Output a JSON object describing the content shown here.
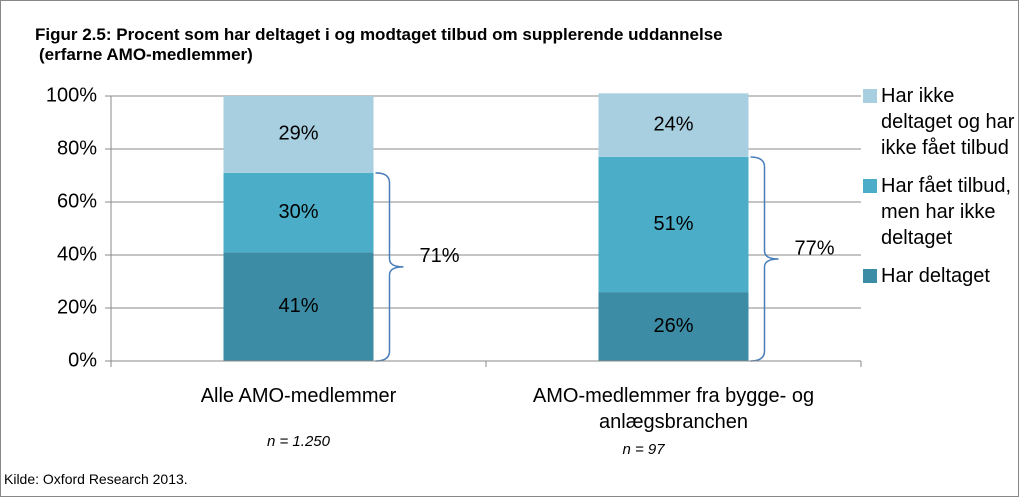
{
  "chart_data": {
    "type": "stacked_bar",
    "title": "Figur 2.5: Procent som har deltaget i og modtaget tilbud om supplerende  uddannelse",
    "subtitle": "(erfarne AMO-medlemmer)",
    "categories": [
      "Alle AMO-medlemmer",
      "AMO-medlemmer fra bygge- og anlægsbranchen"
    ],
    "category_notes": [
      "n = 1.250",
      "n = 97"
    ],
    "series": [
      {
        "name": "Har deltaget",
        "color": "#3c8ca5",
        "values": [
          41,
          26
        ],
        "value_labels": [
          "41%",
          "26%"
        ]
      },
      {
        "name": "Har fået tilbud, men har ikke deltaget",
        "color": "#4badc7",
        "values": [
          30,
          51
        ],
        "value_labels": [
          "30%",
          "51%"
        ]
      },
      {
        "name": "Har ikke deltaget og har ikke fået tilbud",
        "color": "#a8cfe0",
        "values": [
          29,
          24
        ],
        "value_labels": [
          "29%",
          "24%"
        ]
      }
    ],
    "annotations": [
      {
        "value": 71,
        "label": "71%"
      },
      {
        "value": 77,
        "label": "77%"
      }
    ],
    "ylim": [
      0,
      100
    ],
    "yticks": [
      {
        "value": 0,
        "label": "0%"
      },
      {
        "value": 20,
        "label": "20%"
      },
      {
        "value": 40,
        "label": "40%"
      },
      {
        "value": 60,
        "label": "60%"
      },
      {
        "value": 80,
        "label": "80%"
      },
      {
        "value": 100,
        "label": "100%"
      }
    ],
    "grid": true,
    "legend": "right",
    "source": "Kilde: Oxford Research 2013."
  }
}
